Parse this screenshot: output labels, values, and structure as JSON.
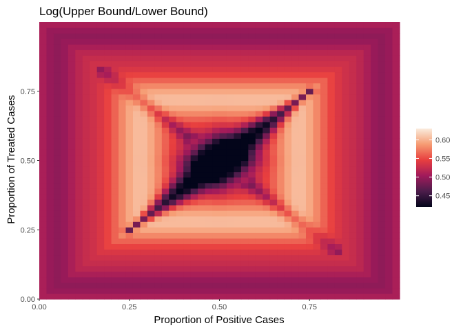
{
  "chart_data": {
    "type": "heatmap",
    "title": "Log(Upper Bound/Lower Bound)",
    "xlabel": "Proportion of Positive Cases",
    "ylabel": "Proportion of Treated Cases",
    "xlim": [
      0,
      1
    ],
    "ylim": [
      0,
      1
    ],
    "grid_step": 0.02,
    "x_ticks": [
      0,
      0.25,
      0.5,
      0.75
    ],
    "x_tick_labels": [
      "0.00",
      "0.25",
      "0.50",
      "0.75"
    ],
    "y_ticks": [
      0,
      0.25,
      0.5,
      0.75
    ],
    "y_tick_labels": [
      "0.00",
      "0.25",
      "0.50",
      "0.75"
    ],
    "value_range": [
      0.42,
      0.63
    ],
    "legend": {
      "placement": "right",
      "breaks": [
        0.45,
        0.5,
        0.55,
        0.6
      ],
      "labels": [
        "0.45",
        "0.50",
        "0.55",
        "0.60"
      ]
    },
    "colormap": [
      "#03051a",
      "#4c1d4b",
      "#a11a5b",
      "#e83f3f",
      "#f69c73",
      "#faebdd"
    ],
    "grid": false
  }
}
